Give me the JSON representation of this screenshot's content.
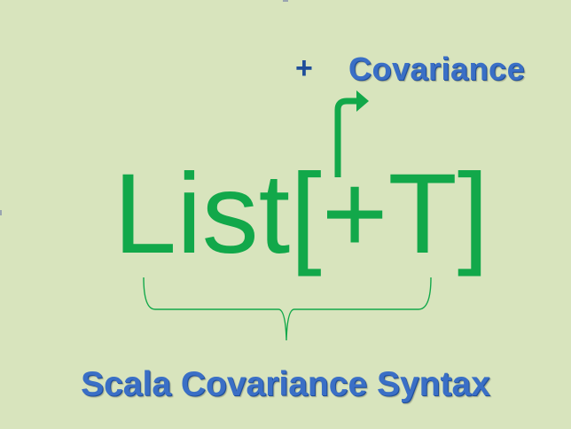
{
  "annotation": {
    "symbol": "+",
    "label": "Covariance"
  },
  "syntax": {
    "expression": "List[+T]"
  },
  "footer": {
    "title": "Scala Covariance Syntax"
  },
  "colors": {
    "background": "#d8e4bd",
    "syntax_green": "#12a84a",
    "label_blue": "#3a6fc6",
    "label_shadow": "#1f4e9a"
  },
  "icons": {
    "arrow": "bent-arrow-icon",
    "brace": "curly-brace-icon"
  }
}
